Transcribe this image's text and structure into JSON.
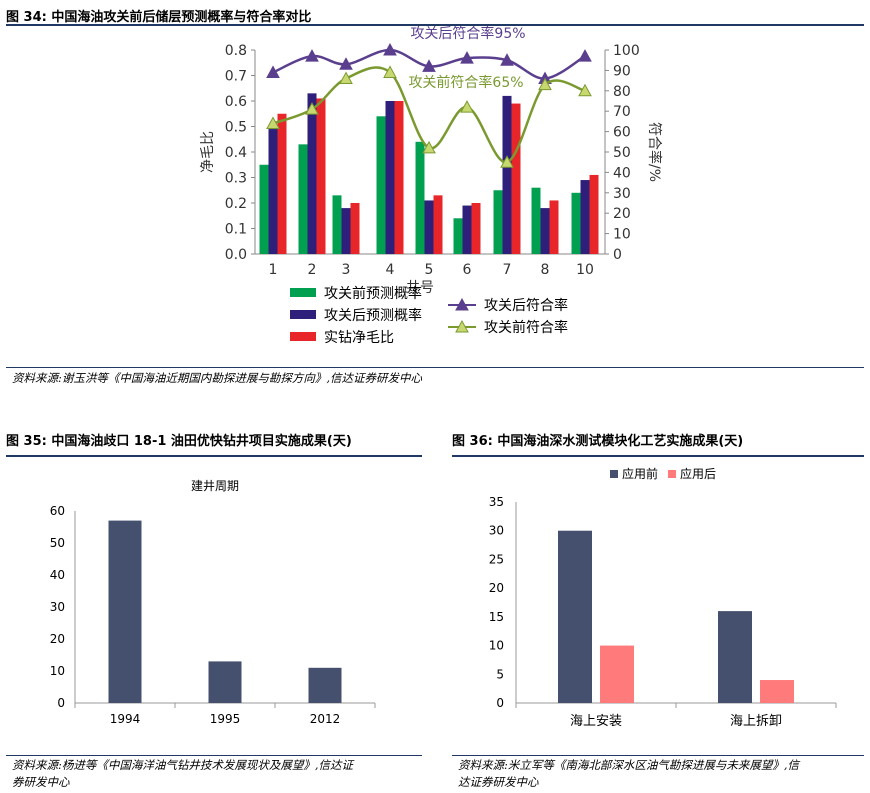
{
  "fig34": {
    "title": "图 34:  中国海油攻关前后储层预测概率与符合率对比",
    "source": "资料来源:谢玉洪等《中国海油近期国内勘探进展与勘探方向》,信达证券研发中心"
  },
  "fig35": {
    "title": "图 35:  中国海油歧口 18-1 油田优快钻井项目实施成果(天)",
    "source_line1": "资料来源:杨进等《中国海洋油气钻井技术发展现状及展望》,信达证",
    "source_line2": "券研发中心"
  },
  "fig36": {
    "title": "图 36:  中国海油深水测试模块化工艺实施成果(天)",
    "source_line1": "资料来源:米立军等《南海北部深水区油气勘探进展与未来展望》,信",
    "source_line2": "达证券研发中心"
  },
  "colors": {
    "green_bar": "#00a050",
    "purple_bar": "#2e1f7a",
    "red_bar": "#e8262a",
    "purple_line": "#5b3f8f",
    "green_line": "#7a9a30",
    "navy_bar": "#44506e",
    "pink_bar": "#ff7b7b",
    "rule": "#1f3864"
  },
  "chart_data": [
    {
      "type": "bar",
      "categories": [
        "1",
        "2",
        "3",
        "4",
        "5",
        "6",
        "7",
        "8",
        "10"
      ],
      "xlabel": "井号",
      "ylabel": "净毛比",
      "ylabel_right": "符合率/%",
      "ylim": [
        0,
        0.8
      ],
      "ylim_right": [
        0,
        100
      ],
      "yticks": [
        "0.0",
        "0.1",
        "0.2",
        "0.3",
        "0.4",
        "0.5",
        "0.6",
        "0.7",
        "0.8"
      ],
      "yticks_right": [
        "0",
        "10",
        "20",
        "30",
        "40",
        "50",
        "60",
        "70",
        "80",
        "90",
        "100"
      ],
      "series": [
        {
          "name": "攻关前预测概率",
          "kind": "bar",
          "values": [
            0.35,
            0.43,
            0.23,
            0.54,
            0.44,
            0.14,
            0.25,
            0.26,
            0.24
          ]
        },
        {
          "name": "攻关后预测概率",
          "kind": "bar",
          "values": [
            0.49,
            0.63,
            0.18,
            0.6,
            0.21,
            0.19,
            0.62,
            0.18,
            0.29
          ]
        },
        {
          "name": "实钻净毛比",
          "kind": "bar",
          "values": [
            0.55,
            0.61,
            0.2,
            0.6,
            0.23,
            0.2,
            0.59,
            0.21,
            0.31
          ]
        },
        {
          "name": "攻关后符合率",
          "kind": "line",
          "axis": "right",
          "values": [
            89,
            97,
            93,
            100,
            92,
            96,
            95,
            86,
            97
          ]
        },
        {
          "name": "攻关前符合率",
          "kind": "line",
          "axis": "right",
          "values": [
            64,
            71,
            86,
            89,
            52,
            72,
            45,
            83,
            80
          ]
        }
      ],
      "annotations": [
        "攻关后符合率95%",
        "攻关前符合率65%"
      ],
      "legend_position": "bottom"
    },
    {
      "type": "bar",
      "title": "建井周期",
      "categories": [
        "1994",
        "1995",
        "2012"
      ],
      "values": [
        57,
        13,
        11
      ],
      "ylim": [
        0,
        60
      ],
      "yticks": [
        "0",
        "10",
        "20",
        "30",
        "40",
        "50",
        "60"
      ]
    },
    {
      "type": "bar",
      "categories": [
        "海上安装",
        "海上拆卸"
      ],
      "ylim": [
        0,
        35
      ],
      "yticks": [
        "0",
        "5",
        "10",
        "15",
        "20",
        "25",
        "30",
        "35"
      ],
      "series": [
        {
          "name": "应用前",
          "values": [
            30,
            16
          ]
        },
        {
          "name": "应用后",
          "values": [
            10,
            4
          ]
        }
      ],
      "legend_position": "top"
    }
  ]
}
